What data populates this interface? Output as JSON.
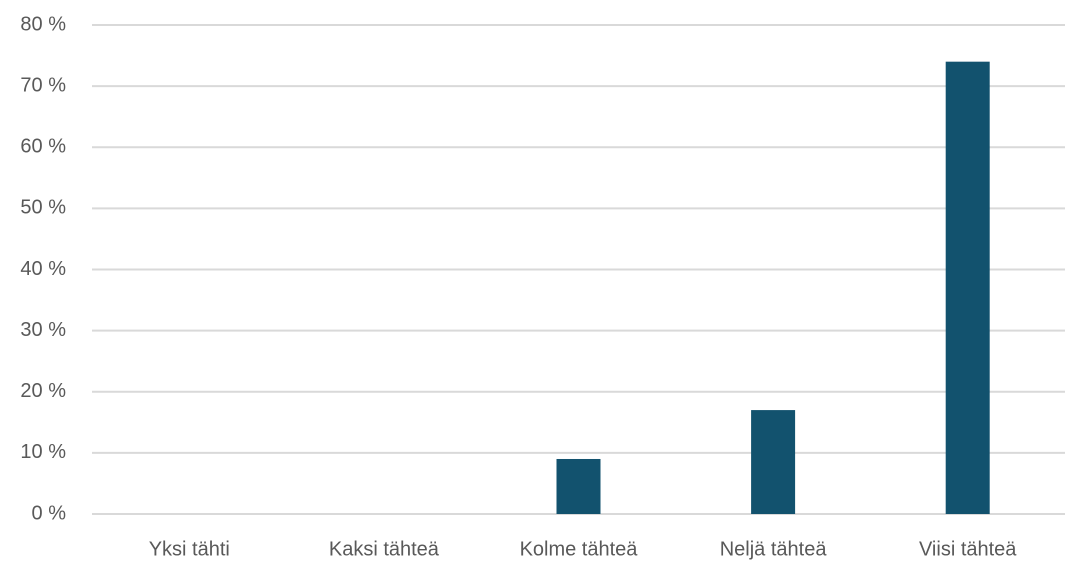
{
  "chart_data": {
    "type": "bar",
    "categories": [
      "Yksi tähti",
      "Kaksi tähteä",
      "Kolme tähteä",
      "Neljä tähteä",
      "Viisi tähteä"
    ],
    "values": [
      0,
      0,
      9,
      17,
      74
    ],
    "color": "#12526e",
    "ylim": [
      0,
      80
    ],
    "yticks": [
      {
        "value": 0,
        "label": "0 %"
      },
      {
        "value": 10,
        "label": "10 %"
      },
      {
        "value": 20,
        "label": "20 %"
      },
      {
        "value": 30,
        "label": "30 %"
      },
      {
        "value": 40,
        "label": "40 %"
      },
      {
        "value": 50,
        "label": "50 %"
      },
      {
        "value": 60,
        "label": "60 %"
      },
      {
        "value": 70,
        "label": "70 %"
      },
      {
        "value": 80,
        "label": "80 %"
      }
    ],
    "grid": true
  }
}
